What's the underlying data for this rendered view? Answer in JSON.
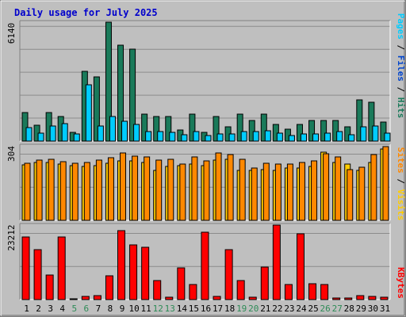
{
  "colors": {
    "background": "#bfbfbf",
    "title": "#0000cc",
    "pages": "#00ccff",
    "files": "#0044cc",
    "hits": "#1a7a5a",
    "visits": "#ffcc00",
    "sites": "#ff8800",
    "kbytes": "#ff0000",
    "weekend_day": "#2e8b57",
    "weekday": "#000000"
  },
  "title": "Daily usage for July 2025",
  "days": [
    "1",
    "2",
    "3",
    "4",
    "5",
    "6",
    "7",
    "8",
    "9",
    "10",
    "11",
    "12",
    "13",
    "14",
    "15",
    "16",
    "17",
    "18",
    "19",
    "20",
    "21",
    "22",
    "23",
    "24",
    "25",
    "26",
    "27",
    "28",
    "29",
    "30",
    "31"
  ],
  "weekend_days": [
    "5",
    "6",
    "12",
    "13",
    "19",
    "20",
    "26",
    "27"
  ],
  "chart_data": [
    {
      "type": "bar",
      "panel": "hits-files-pages",
      "categories": [
        "1",
        "2",
        "3",
        "4",
        "5",
        "6",
        "7",
        "8",
        "9",
        "10",
        "11",
        "12",
        "13",
        "14",
        "15",
        "16",
        "17",
        "18",
        "19",
        "20",
        "21",
        "22",
        "23",
        "24",
        "25",
        "26",
        "27",
        "28",
        "29",
        "30",
        "31"
      ],
      "scale_max_label": "6140",
      "scale_max": 6140,
      "side_label": {
        "pages": "Pages",
        "sep1": "/",
        "files": "Files",
        "sep2": "/",
        "hits": "Hits"
      },
      "series": [
        {
          "name": "Hits",
          "color": "#1a7a5a",
          "values": [
            1460,
            800,
            1460,
            1250,
            460,
            3600,
            3300,
            6140,
            4940,
            4730,
            1400,
            1250,
            1250,
            560,
            1400,
            450,
            1250,
            720,
            1400,
            1080,
            1400,
            840,
            620,
            840,
            1060,
            1080,
            1060,
            730,
            2120,
            2020,
            1000
          ]
        },
        {
          "name": "Files",
          "color": "#0044cc",
          "values": [
            0,
            0,
            0,
            0,
            0,
            0,
            0,
            0,
            0,
            0,
            0,
            0,
            0,
            0,
            0,
            0,
            0,
            0,
            0,
            0,
            0,
            0,
            0,
            0,
            0,
            0,
            0,
            0,
            0,
            0,
            0
          ]
        },
        {
          "name": "Pages",
          "color": "#00ccff",
          "values": [
            710,
            420,
            760,
            900,
            360,
            2900,
            790,
            1280,
            1040,
            870,
            500,
            480,
            450,
            330,
            490,
            300,
            360,
            360,
            480,
            480,
            540,
            410,
            290,
            380,
            350,
            410,
            510,
            330,
            740,
            790,
            420
          ]
        }
      ]
    },
    {
      "type": "bar",
      "panel": "visits-sites",
      "categories": [
        "1",
        "2",
        "3",
        "4",
        "5",
        "6",
        "7",
        "8",
        "9",
        "10",
        "11",
        "12",
        "13",
        "14",
        "15",
        "16",
        "17",
        "18",
        "19",
        "20",
        "21",
        "22",
        "23",
        "24",
        "25",
        "26",
        "27",
        "28",
        "29",
        "30",
        "31"
      ],
      "scale_max_label": "304",
      "scale_max": 304,
      "side_label": {
        "sites": "Sites",
        "sep": "/",
        "visits": "Visits"
      },
      "series": [
        {
          "name": "Visits",
          "color": "#ffcc00",
          "values": [
            227,
            236,
            237,
            229,
            222,
            221,
            222,
            232,
            244,
            242,
            237,
            205,
            219,
            222,
            230,
            222,
            245,
            250,
            203,
            205,
            208,
            205,
            215,
            213,
            220,
            278,
            236,
            230,
            203,
            235,
            290
          ]
        },
        {
          "name": "Sites",
          "color": "#ff8800",
          "values": [
            232,
            246,
            250,
            238,
            232,
            236,
            247,
            257,
            275,
            262,
            260,
            246,
            250,
            231,
            258,
            242,
            274,
            268,
            250,
            215,
            232,
            230,
            231,
            237,
            241,
            271,
            260,
            206,
            217,
            268,
            300
          ]
        }
      ]
    },
    {
      "type": "bar",
      "panel": "kbytes",
      "categories": [
        "1",
        "2",
        "3",
        "4",
        "5",
        "6",
        "7",
        "8",
        "9",
        "10",
        "11",
        "12",
        "13",
        "14",
        "15",
        "16",
        "17",
        "18",
        "19",
        "20",
        "21",
        "22",
        "23",
        "24",
        "25",
        "26",
        "27",
        "28",
        "29",
        "30",
        "31"
      ],
      "scale_max_label": "23212",
      "scale_max": 23212,
      "side_label": {
        "kbytes": "KBytes"
      },
      "series": [
        {
          "name": "KBytes",
          "color": "#ff0000",
          "values": [
            19600,
            15600,
            7600,
            19400,
            300,
            1000,
            1300,
            7400,
            21400,
            17100,
            16400,
            6000,
            700,
            10000,
            4700,
            21100,
            900,
            15600,
            6000,
            700,
            10100,
            23100,
            4600,
            20600,
            5000,
            4800,
            600,
            600,
            1300,
            900,
            800
          ]
        }
      ]
    }
  ]
}
